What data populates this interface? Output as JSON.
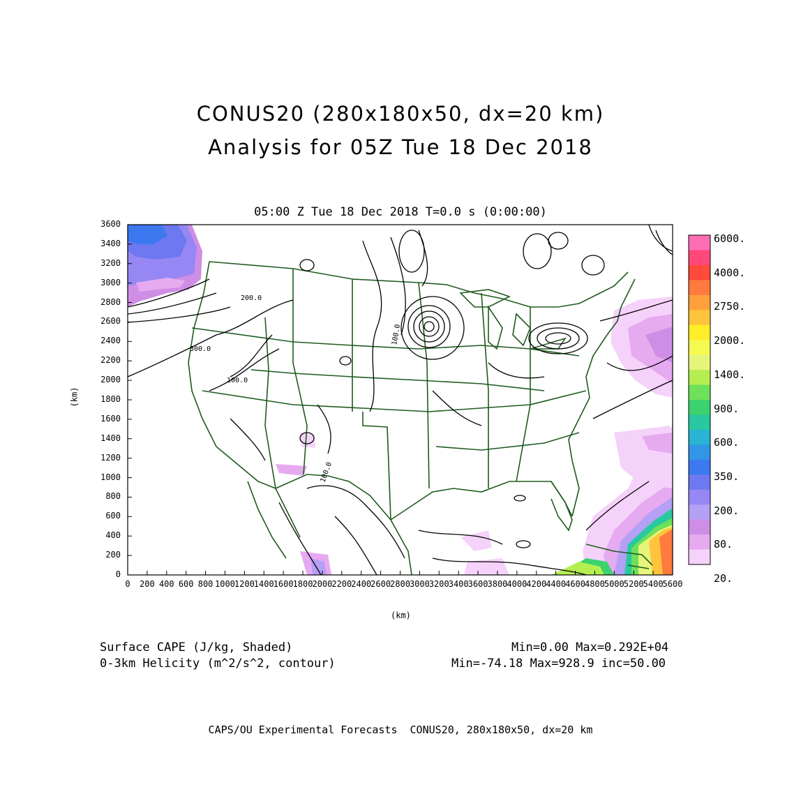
{
  "title_line1": "CONUS20 (280x180x50, dx=20 km)",
  "title_line2": "Analysis for 05Z Tue 18 Dec 2018",
  "subtitle": "05:00 Z Tue 18 Dec 2018   T=0.0 s (0:00:00)",
  "y_axis_label": "(km)",
  "x_axis_label": "(km)",
  "y_ticks": [
    "0",
    "200",
    "400",
    "600",
    "800",
    "1000",
    "1200",
    "1400",
    "1600",
    "1800",
    "2000",
    "2200",
    "2400",
    "2600",
    "2800",
    "3000",
    "3200",
    "3400",
    "3600"
  ],
  "x_ticks": [
    "0",
    "200",
    "400",
    "600",
    "800",
    "1000",
    "1200",
    "1400",
    "1600",
    "1800",
    "2000",
    "2200",
    "2400",
    "2600",
    "2800",
    "3000",
    "3200",
    "3400",
    "3600",
    "3800",
    "4000",
    "4200",
    "4400",
    "4600",
    "4800",
    "5000",
    "5200",
    "5400",
    "5600"
  ],
  "contour_labels": [
    "200.0",
    "300.0",
    "100.0",
    "100.0",
    "100.0"
  ],
  "colorbar": {
    "labels": [
      "6000.",
      "4000.",
      "2750.",
      "2000.",
      "1400.",
      "900.",
      "600.",
      "350.",
      "200.",
      "80.",
      "20."
    ],
    "colors": [
      "#ff6eb4",
      "#ff4878",
      "#ff4a3c",
      "#ff7a3c",
      "#ffa03c",
      "#ffc43c",
      "#ffee28",
      "#f5fa50",
      "#e6f57a",
      "#b4ee50",
      "#6ee05a",
      "#3cd26e",
      "#28c8a0",
      "#28b4d2",
      "#3296e6",
      "#3c78f0",
      "#6e78f0",
      "#9687f5",
      "#b4a0f5",
      "#cf8ee6",
      "#e6aaf0",
      "#f5d2fa"
    ]
  },
  "notes": {
    "left1": "Surface CAPE (J/kg, Shaded)",
    "left2": "0-3km Helicity (m^2/s^2, contour)",
    "right1": "Min=0.00 Max=0.292E+04",
    "right2": "Min=-74.18 Max=928.9 inc=50.00"
  },
  "footer": "CAPS/OU Experimental Forecasts  CONUS20, 280x180x50, dx=20 km"
}
